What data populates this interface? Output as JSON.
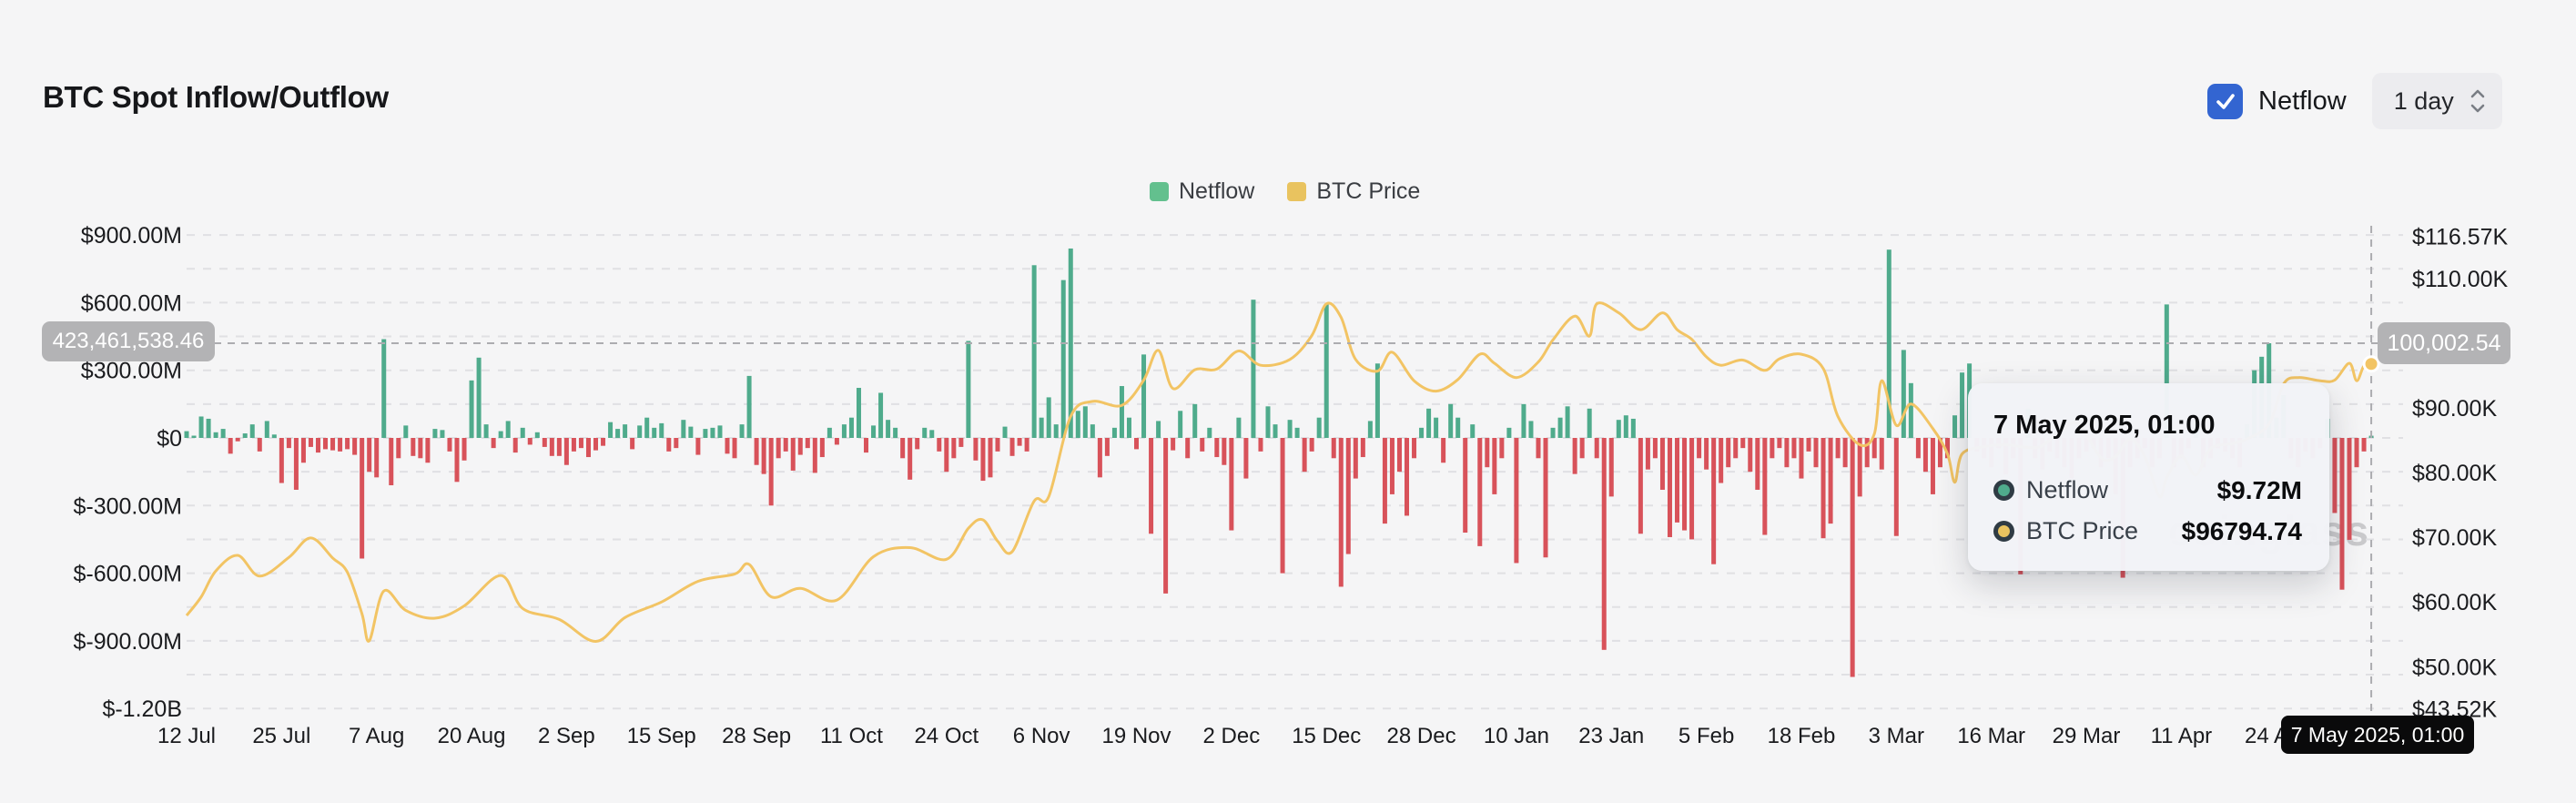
{
  "header": {
    "title": "BTC Spot Inflow/Outflow",
    "netflow_checkbox": {
      "label": "Netflow",
      "checked": true,
      "color": "#3365D1"
    },
    "interval_select": {
      "value": "1 day"
    }
  },
  "legend": [
    {
      "label": "Netflow",
      "color": "#63C08E"
    },
    {
      "label": "BTC Price",
      "color": "#E9C35F"
    }
  ],
  "crosshair": {
    "date_pill": "7 May 2025, 01:00",
    "netflow_axis_badge": "423,461,538.46",
    "price_axis_badge": "100,002.54",
    "day_index": 299,
    "price_axis_hover_value_k": 100.0
  },
  "tooltip": {
    "title": "7 May 2025, 01:00",
    "rows": [
      {
        "label": "Netflow",
        "value": "$9.72M",
        "color": "#4FAB8C"
      },
      {
        "label": "BTC Price",
        "value": "$96794.74",
        "color": "#E9C35F"
      }
    ]
  },
  "watermark": "coinglass",
  "chart_data": {
    "type": [
      "bar",
      "line"
    ],
    "interval": "1 day",
    "start_date": "12 Jul 2024",
    "end_date": "7 May 2025",
    "legend_position": "top-center",
    "grid": true,
    "y_left": {
      "unit": "USD",
      "range_millions": [
        -1200,
        900
      ],
      "tick_labels": [
        "$900.00M",
        "$600.00M",
        "$300.00M",
        "$0",
        "$-300.00M",
        "$-600.00M",
        "$-900.00M",
        "$-1.20B"
      ],
      "tick_values_millions": [
        900,
        600,
        300,
        0,
        -300,
        -600,
        -900,
        -1200
      ],
      "grid_values_millions": [
        900,
        750,
        600,
        450,
        300,
        150,
        0,
        -150,
        -300,
        -450,
        -600,
        -750,
        -900,
        -1050,
        -1200
      ]
    },
    "y_right": {
      "unit": "USD",
      "range_thousands": [
        43.52,
        116.57
      ],
      "tick_labels": [
        "$116.57K",
        "$110.00K",
        "$90.00K",
        "$80.00K",
        "$70.00K",
        "$60.00K",
        "$50.00K",
        "$43.52K"
      ],
      "tick_values_thousands": [
        116.57,
        110,
        90,
        80,
        70,
        60,
        50,
        43.52
      ]
    },
    "x_ticks": {
      "labels": [
        "12 Jul",
        "25 Jul",
        "7 Aug",
        "20 Aug",
        "2 Sep",
        "15 Sep",
        "28 Sep",
        "11 Oct",
        "24 Oct",
        "6 Nov",
        "19 Nov",
        "2 Dec",
        "15 Dec",
        "28 Dec",
        "10 Jan",
        "23 Jan",
        "5 Feb",
        "18 Feb",
        "3 Mar",
        "16 Mar",
        "29 Mar",
        "11 Apr",
        "24 Apr",
        "7 May"
      ],
      "day_indices": [
        0,
        13,
        26,
        39,
        52,
        65,
        78,
        91,
        104,
        117,
        130,
        143,
        156,
        169,
        182,
        195,
        208,
        221,
        234,
        247,
        260,
        273,
        286,
        299
      ]
    },
    "series_bar": {
      "name": "Netflow",
      "unit": "USD millions (estimated from pixels)",
      "color_positive": "#4FAB8C",
      "color_negative": "#D8525A",
      "values": [
        30,
        10,
        95,
        85,
        25,
        40,
        -70,
        -15,
        20,
        60,
        -60,
        75,
        15,
        -200,
        -45,
        -230,
        -110,
        -40,
        -65,
        -50,
        -55,
        -60,
        -50,
        -75,
        -535,
        -150,
        -175,
        438,
        -210,
        -90,
        55,
        -80,
        -90,
        -110,
        40,
        35,
        -60,
        -195,
        -100,
        255,
        356,
        60,
        -45,
        30,
        75,
        -65,
        45,
        -30,
        25,
        -40,
        -80,
        -80,
        -120,
        -60,
        -45,
        -85,
        -55,
        -35,
        70,
        40,
        60,
        -50,
        55,
        90,
        45,
        65,
        -60,
        -45,
        80,
        50,
        -75,
        40,
        45,
        55,
        -70,
        -90,
        60,
        275,
        -120,
        -160,
        -300,
        -90,
        -60,
        -145,
        -75,
        -45,
        -155,
        -85,
        45,
        -30,
        60,
        90,
        222,
        -65,
        55,
        200,
        80,
        45,
        -90,
        -185,
        -50,
        45,
        35,
        -60,
        -150,
        -90,
        -40,
        430,
        -100,
        -190,
        -175,
        -60,
        50,
        -80,
        -35,
        -60,
        766,
        90,
        180,
        60,
        700,
        840,
        120,
        140,
        60,
        -175,
        -80,
        45,
        230,
        90,
        -50,
        370,
        -425,
        75,
        -690,
        -55,
        120,
        -90,
        150,
        -60,
        45,
        -85,
        -120,
        -410,
        90,
        -180,
        613,
        -60,
        140,
        60,
        -600,
        80,
        45,
        -150,
        -60,
        90,
        592,
        -90,
        -660,
        -515,
        -180,
        -85,
        75,
        330,
        -380,
        -250,
        -150,
        -345,
        -90,
        45,
        130,
        90,
        -110,
        150,
        90,
        -420,
        60,
        -480,
        -130,
        -250,
        -90,
        45,
        -555,
        150,
        75,
        -90,
        -530,
        45,
        90,
        140,
        -160,
        -90,
        130,
        -90,
        -940,
        -260,
        80,
        100,
        85,
        -425,
        -140,
        -90,
        -230,
        -440,
        -375,
        -410,
        -450,
        -90,
        -140,
        -560,
        -200,
        -130,
        -90,
        -45,
        -150,
        -230,
        -430,
        -90,
        -45,
        -130,
        -90,
        -180,
        -60,
        -130,
        -445,
        -380,
        -90,
        -130,
        -1060,
        -260,
        -130,
        -90,
        -140,
        835,
        -435,
        390,
        243,
        -90,
        -150,
        -250,
        -130,
        -90,
        100,
        290,
        330,
        -60,
        -90,
        -130,
        -45,
        -160,
        -90,
        -605,
        130,
        -90,
        -140,
        -60,
        -90,
        -130,
        -180,
        -90,
        -60,
        -45,
        -130,
        -90,
        -250,
        -620,
        -130,
        -90,
        -45,
        -130,
        -90,
        592,
        -130,
        -90,
        -45,
        60,
        -130,
        -90,
        -45,
        -60,
        -90,
        -130,
        60,
        300,
        360,
        420,
        90,
        190,
        -90,
        -130,
        -60,
        -90,
        -45,
        85,
        -333,
        -673,
        -452,
        -130,
        -60,
        9.72
      ]
    },
    "series_line": {
      "name": "BTC Price",
      "unit": "USD thousands (estimated from pixels)",
      "color": "#F2C464",
      "points_day_value": [
        [
          0,
          57.9
        ],
        [
          2,
          60.8
        ],
        [
          4,
          64.8
        ],
        [
          7,
          67.2
        ],
        [
          10,
          64.0
        ],
        [
          14,
          66.9
        ],
        [
          17,
          69.9
        ],
        [
          20,
          66.8
        ],
        [
          22,
          64.6
        ],
        [
          24,
          58.2
        ],
        [
          25,
          54.0
        ],
        [
          27,
          61.7
        ],
        [
          30,
          58.7
        ],
        [
          34,
          57.5
        ],
        [
          38,
          59.4
        ],
        [
          43,
          64.1
        ],
        [
          46,
          59.0
        ],
        [
          51,
          57.3
        ],
        [
          56,
          53.9
        ],
        [
          60,
          57.6
        ],
        [
          65,
          60.0
        ],
        [
          70,
          63.2
        ],
        [
          75,
          64.3
        ],
        [
          77,
          65.8
        ],
        [
          80,
          60.8
        ],
        [
          84,
          62.1
        ],
        [
          89,
          60.3
        ],
        [
          94,
          67.0
        ],
        [
          99,
          68.4
        ],
        [
          104,
          66.6
        ],
        [
          107,
          71.4
        ],
        [
          109,
          72.7
        ],
        [
          111,
          69.4
        ],
        [
          113,
          67.8
        ],
        [
          116,
          75.6
        ],
        [
          118,
          76.3
        ],
        [
          121,
          88.7
        ],
        [
          124,
          91.0
        ],
        [
          128,
          90.4
        ],
        [
          131,
          94.3
        ],
        [
          133,
          98.9
        ],
        [
          135,
          93.0
        ],
        [
          138,
          95.9
        ],
        [
          141,
          96.0
        ],
        [
          144,
          98.8
        ],
        [
          147,
          96.6
        ],
        [
          151,
          97.5
        ],
        [
          154,
          101.2
        ],
        [
          156,
          106.1
        ],
        [
          158,
          104.0
        ],
        [
          160,
          97.5
        ],
        [
          163,
          95.7
        ],
        [
          165,
          98.6
        ],
        [
          168,
          94.2
        ],
        [
          171,
          92.6
        ],
        [
          174,
          94.4
        ],
        [
          177,
          98.3
        ],
        [
          179,
          96.9
        ],
        [
          182,
          94.7
        ],
        [
          185,
          97.1
        ],
        [
          187,
          100.5
        ],
        [
          190,
          104.2
        ],
        [
          192,
          101.1
        ],
        [
          193,
          106.1
        ],
        [
          196,
          104.7
        ],
        [
          199,
          102.1
        ],
        [
          202,
          104.7
        ],
        [
          204,
          102.1
        ],
        [
          206,
          100.6
        ],
        [
          208,
          97.9
        ],
        [
          210,
          96.6
        ],
        [
          213,
          97.4
        ],
        [
          216,
          95.8
        ],
        [
          218,
          97.6
        ],
        [
          221,
          98.3
        ],
        [
          224,
          96.1
        ],
        [
          226,
          88.7
        ],
        [
          229,
          84.3
        ],
        [
          231,
          86.0
        ],
        [
          232,
          94.2
        ],
        [
          234,
          87.3
        ],
        [
          236,
          90.6
        ],
        [
          239,
          86.8
        ],
        [
          241,
          82.9
        ],
        [
          242,
          78.5
        ],
        [
          243,
          82.9
        ],
        [
          246,
          84.0
        ],
        [
          249,
          84.3
        ],
        [
          252,
          83.9
        ],
        [
          254,
          84.2
        ],
        [
          257,
          86.9
        ],
        [
          259,
          87.5
        ],
        [
          262,
          82.3
        ],
        [
          264,
          82.5
        ],
        [
          266,
          85.2
        ],
        [
          268,
          82.5
        ],
        [
          270,
          76.3
        ],
        [
          271,
          79.2
        ],
        [
          273,
          82.6
        ],
        [
          275,
          79.6
        ],
        [
          277,
          83.7
        ],
        [
          280,
          84.5
        ],
        [
          282,
          85.2
        ],
        [
          285,
          87.5
        ],
        [
          287,
          93.7
        ],
        [
          289,
          94.7
        ],
        [
          292,
          94.2
        ],
        [
          294,
          94.3
        ],
        [
          296,
          96.9
        ],
        [
          297,
          94.2
        ],
        [
          298,
          96.5
        ],
        [
          299,
          96.794
        ]
      ],
      "last_point_marker": true
    }
  }
}
